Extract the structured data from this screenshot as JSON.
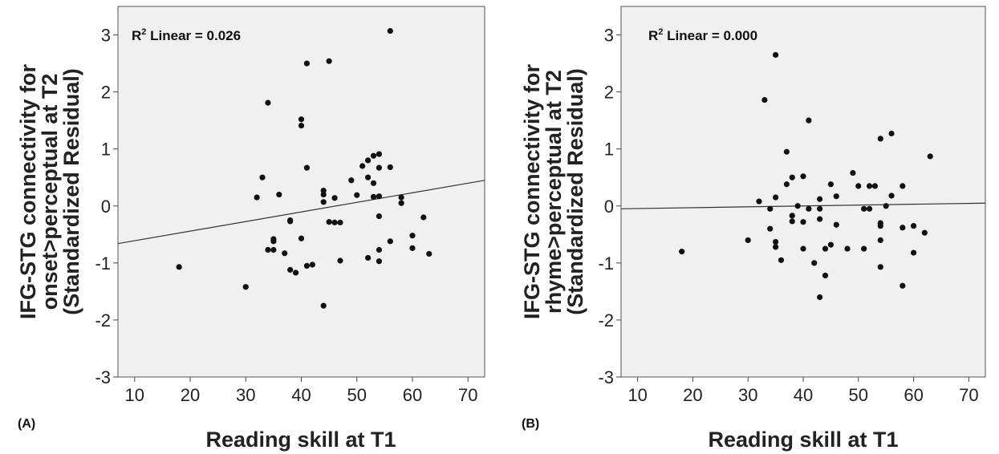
{
  "chart_data": [
    {
      "type": "scatter",
      "panel_label": "(A)",
      "title": "",
      "ylabel_lines": [
        "IFG-STG connectivity for",
        "onset>perceptual at T2",
        "(Standardized Residual)"
      ],
      "xlabel": "Reading skill at T1",
      "xlim": [
        7,
        73
      ],
      "ylim": [
        -3,
        3.5
      ],
      "xticks": [
        10,
        20,
        30,
        40,
        50,
        60,
        70
      ],
      "yticks": [
        -3,
        -2,
        -1,
        0,
        1,
        2,
        3
      ],
      "annotation": {
        "r": "R",
        "sup": "2",
        "text": " Linear = 0.026"
      },
      "fit_line": {
        "x": [
          7,
          73
        ],
        "y": [
          -0.66,
          0.45
        ]
      },
      "grid": false,
      "points": [
        [
          18,
          -1.07
        ],
        [
          30,
          -1.42
        ],
        [
          32,
          0.15
        ],
        [
          33,
          0.5
        ],
        [
          34,
          -0.77
        ],
        [
          34,
          1.81
        ],
        [
          35,
          -0.58
        ],
        [
          35,
          -0.62
        ],
        [
          35,
          -0.77
        ],
        [
          36,
          0.2
        ],
        [
          37,
          -0.83
        ],
        [
          38,
          -0.25
        ],
        [
          38,
          -0.27
        ],
        [
          38,
          -1.12
        ],
        [
          39,
          -1.17
        ],
        [
          40,
          1.52
        ],
        [
          40,
          1.41
        ],
        [
          40,
          -0.57
        ],
        [
          41,
          2.5
        ],
        [
          41,
          0.67
        ],
        [
          41,
          -1.05
        ],
        [
          42,
          -1.03
        ],
        [
          44,
          0.27
        ],
        [
          44,
          0.2
        ],
        [
          44,
          0.07
        ],
        [
          44,
          -1.75
        ],
        [
          45,
          2.54
        ],
        [
          45,
          -0.28
        ],
        [
          46,
          -0.29
        ],
        [
          46,
          0.14
        ],
        [
          47,
          -0.29
        ],
        [
          47,
          -0.96
        ],
        [
          49,
          0.45
        ],
        [
          50,
          0.19
        ],
        [
          51,
          0.7
        ],
        [
          52,
          0.8
        ],
        [
          52,
          0.5
        ],
        [
          52,
          -0.91
        ],
        [
          53,
          0.88
        ],
        [
          53,
          0.16
        ],
        [
          53,
          0.4
        ],
        [
          54,
          0.91
        ],
        [
          54,
          0.67
        ],
        [
          54,
          0.17
        ],
        [
          54,
          -0.18
        ],
        [
          54,
          -0.77
        ],
        [
          54,
          -0.97
        ],
        [
          56,
          3.07
        ],
        [
          56,
          0.68
        ],
        [
          56,
          -0.62
        ],
        [
          58,
          0.15
        ],
        [
          58,
          0.05
        ],
        [
          60,
          -0.52
        ],
        [
          60,
          -0.74
        ],
        [
          62,
          -0.2
        ],
        [
          63,
          -0.84
        ]
      ]
    },
    {
      "type": "scatter",
      "panel_label": "(B)",
      "title": "",
      "ylabel_lines": [
        "IFG-STG connectivity for",
        "rhyme>perceptual at T2",
        "(Standardized Residual)"
      ],
      "xlabel": "Reading skill at T1",
      "xlim": [
        7,
        73
      ],
      "ylim": [
        -3,
        3.5
      ],
      "xticks": [
        10,
        20,
        30,
        40,
        50,
        60,
        70
      ],
      "yticks": [
        -3,
        -2,
        -1,
        0,
        1,
        2,
        3
      ],
      "annotation": {
        "r": "R",
        "sup": "2",
        "text": " Linear = 0.000"
      },
      "fit_line": {
        "x": [
          7,
          73
        ],
        "y": [
          -0.05,
          0.05
        ]
      },
      "grid": false,
      "points": [
        [
          18,
          -0.8
        ],
        [
          30,
          -0.6
        ],
        [
          32,
          0.08
        ],
        [
          33,
          1.86
        ],
        [
          34,
          -0.05
        ],
        [
          34,
          -0.4
        ],
        [
          35,
          2.65
        ],
        [
          35,
          0.15
        ],
        [
          35,
          -0.63
        ],
        [
          35,
          -0.72
        ],
        [
          36,
          -0.95
        ],
        [
          37,
          0.95
        ],
        [
          37,
          0.38
        ],
        [
          38,
          0.5
        ],
        [
          38,
          -0.17
        ],
        [
          38,
          -0.27
        ],
        [
          39,
          0.0
        ],
        [
          40,
          0.52
        ],
        [
          40,
          -0.28
        ],
        [
          40,
          -0.75
        ],
        [
          41,
          1.5
        ],
        [
          41,
          -0.05
        ],
        [
          42,
          -1.0
        ],
        [
          43,
          0.12
        ],
        [
          43,
          -0.05
        ],
        [
          43,
          -0.23
        ],
        [
          43,
          -1.6
        ],
        [
          44,
          -0.75
        ],
        [
          44,
          -1.22
        ],
        [
          45,
          0.38
        ],
        [
          45,
          -0.68
        ],
        [
          46,
          0.17
        ],
        [
          46,
          -0.33
        ],
        [
          48,
          -0.75
        ],
        [
          49,
          0.58
        ],
        [
          50,
          0.35
        ],
        [
          51,
          -0.05
        ],
        [
          51,
          -0.75
        ],
        [
          52,
          0.35
        ],
        [
          52,
          -0.05
        ],
        [
          53,
          0.35
        ],
        [
          54,
          1.18
        ],
        [
          54,
          -0.3
        ],
        [
          54,
          -0.35
        ],
        [
          54,
          -0.6
        ],
        [
          54,
          -1.07
        ],
        [
          55,
          0.0
        ],
        [
          56,
          1.27
        ],
        [
          56,
          0.18
        ],
        [
          58,
          0.35
        ],
        [
          58,
          -0.38
        ],
        [
          58,
          -1.4
        ],
        [
          60,
          -0.35
        ],
        [
          60,
          -0.82
        ],
        [
          62,
          -0.47
        ],
        [
          63,
          0.87
        ]
      ]
    }
  ]
}
